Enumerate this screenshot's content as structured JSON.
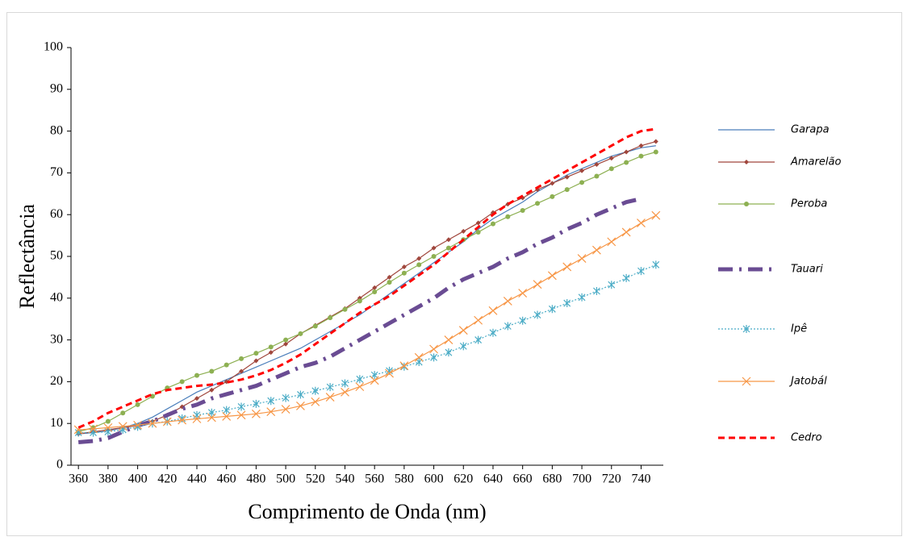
{
  "chart_data": {
    "type": "line",
    "x_label": "Comprimento de Onda (nm)",
    "y_label": "Reflectância",
    "x": [
      360,
      370,
      380,
      390,
      400,
      410,
      420,
      430,
      440,
      450,
      460,
      470,
      480,
      490,
      500,
      510,
      520,
      530,
      540,
      550,
      560,
      570,
      580,
      590,
      600,
      610,
      620,
      630,
      640,
      650,
      660,
      670,
      680,
      690,
      700,
      710,
      720,
      730,
      740,
      750
    ],
    "xlim": [
      355,
      755
    ],
    "xticks": [
      360,
      380,
      400,
      420,
      440,
      460,
      480,
      500,
      520,
      540,
      560,
      580,
      600,
      620,
      640,
      660,
      680,
      700,
      720,
      740
    ],
    "ylim": [
      0,
      100
    ],
    "yticks": [
      0,
      10,
      20,
      30,
      40,
      50,
      60,
      70,
      80,
      90,
      100
    ],
    "legend": "right",
    "series": [
      {
        "name": "Garapa",
        "color": "#4a7ebb",
        "dash": "solid",
        "marker": "none",
        "values": [
          7.5,
          7.8,
          8.2,
          9,
          10,
          11.5,
          13.5,
          15.5,
          17.5,
          19,
          20.5,
          22,
          23.5,
          25,
          26.5,
          28,
          30,
          32,
          34,
          36,
          38.5,
          41,
          43.5,
          46,
          48.5,
          51,
          53.5,
          56.5,
          59,
          61,
          63,
          65.5,
          67.5,
          69.5,
          71,
          72.5,
          74,
          75,
          76,
          76.5
        ]
      },
      {
        "name": "Amarelão",
        "color": "#a0463c",
        "dash": "solid",
        "marker": "diamond",
        "values": [
          7.5,
          8,
          8.5,
          9,
          9.5,
          10.5,
          12,
          14,
          16,
          18,
          20,
          22.5,
          25,
          27,
          29,
          31.5,
          33.5,
          35.5,
          37.5,
          40,
          42.5,
          45,
          47.5,
          49.5,
          52,
          54,
          56,
          58,
          60.5,
          62.5,
          64,
          66,
          67.5,
          69,
          70.5,
          72,
          73.5,
          75,
          76.5,
          77.5
        ]
      },
      {
        "name": "Peroba",
        "color": "#8db052",
        "dash": "solid",
        "marker": "circle",
        "values": [
          8,
          9,
          10.5,
          12.5,
          14.5,
          16.5,
          18.5,
          20,
          21.5,
          22.5,
          24,
          25.5,
          26.8,
          28.3,
          30,
          31.5,
          33.3,
          35.3,
          37.3,
          39.3,
          41.5,
          43.8,
          46,
          48,
          50,
          52,
          54,
          55.8,
          57.8,
          59.5,
          61,
          62.7,
          64.3,
          66,
          67.7,
          69.2,
          71,
          72.5,
          74,
          75
        ]
      },
      {
        "name": "Tauari",
        "color": "#6a4c93",
        "dash": "dash-dot",
        "marker": "none",
        "values": [
          5.5,
          5.8,
          6.5,
          8,
          9.5,
          10.5,
          12,
          13.5,
          14.5,
          16,
          17,
          18,
          19,
          20.5,
          22,
          23.5,
          24.5,
          26,
          28,
          30,
          32,
          34,
          36,
          38,
          40,
          42.5,
          44.5,
          46,
          47.5,
          49.5,
          51,
          53,
          54.5,
          56.5,
          58,
          60,
          61.5,
          63,
          63.8,
          null
        ]
      },
      {
        "name": "Ipê",
        "color": "#4bacc6",
        "dash": "dotted",
        "marker": "asterisk",
        "values": [
          7.8,
          7.8,
          8,
          8.5,
          9.2,
          10,
          10.5,
          11.2,
          12,
          12.6,
          13.2,
          14,
          14.7,
          15.4,
          16.1,
          16.9,
          17.8,
          18.7,
          19.6,
          20.6,
          21.6,
          22.6,
          23.6,
          24.7,
          25.8,
          27,
          28.5,
          30,
          31.7,
          33.3,
          34.6,
          36,
          37.4,
          38.8,
          40.2,
          41.7,
          43.2,
          44.8,
          46.5,
          48
        ]
      },
      {
        "name": "Jatobál",
        "color": "#f79646",
        "dash": "solid",
        "marker": "x",
        "values": [
          8.5,
          8.7,
          9,
          9.3,
          9.6,
          10,
          10.4,
          10.8,
          11.1,
          11.4,
          11.7,
          12,
          12.3,
          12.8,
          13.4,
          14.2,
          15.2,
          16.3,
          17.5,
          18.8,
          20.3,
          22,
          23.8,
          25.8,
          27.8,
          30,
          32.3,
          34.7,
          37,
          39.3,
          41.2,
          43.3,
          45.4,
          47.5,
          49.5,
          51.5,
          53.5,
          55.8,
          58,
          59.8
        ]
      },
      {
        "name": "Cedro",
        "color": "#ff0000",
        "dash": "dashed",
        "marker": "none",
        "values": [
          9,
          10.5,
          12.5,
          14,
          15.5,
          17,
          18,
          18.5,
          19,
          19.3,
          19.8,
          20.5,
          21.5,
          22.8,
          24.5,
          26.5,
          29,
          31.5,
          34,
          36.5,
          38.5,
          40.5,
          43,
          45.5,
          48,
          51,
          54,
          57,
          60,
          62.5,
          64.5,
          66.5,
          68.5,
          70.5,
          72.5,
          74.5,
          76.5,
          78.5,
          80,
          80.5
        ]
      }
    ]
  }
}
